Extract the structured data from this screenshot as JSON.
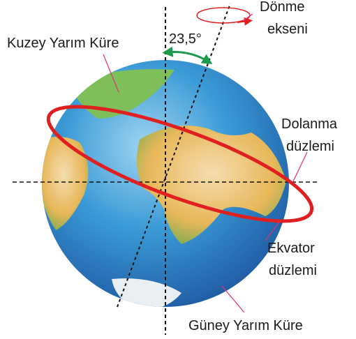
{
  "labels": {
    "rotation_axis": [
      "Dönme",
      "ekseni"
    ],
    "northern_hemisphere": "Kuzey Yarım Küre",
    "tilt_angle": "23,5°",
    "orbital_plane": [
      "Dolanma",
      "düzlemi"
    ],
    "equatorial_plane": [
      "Ekvator",
      "düzlemi"
    ],
    "southern_hemisphere": "Güney Yarım Küre"
  }
}
